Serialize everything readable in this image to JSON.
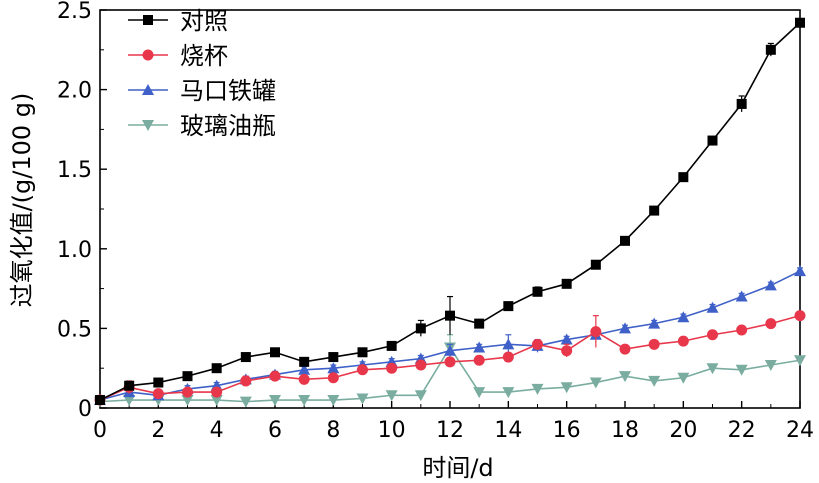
{
  "chart_data": {
    "type": "line",
    "xlabel": "时间/d",
    "ylabel": "过氧化值/(g/100 g)",
    "xlim": [
      0,
      24
    ],
    "ylim": [
      0,
      2.5
    ],
    "x_ticks": [
      0,
      2,
      4,
      6,
      8,
      10,
      12,
      14,
      16,
      18,
      20,
      22,
      24
    ],
    "y_ticks": [
      0,
      0.5,
      1.0,
      1.5,
      2.0,
      2.5
    ],
    "x_tick_labels": [
      "0",
      "2",
      "4",
      "6",
      "8",
      "10",
      "12",
      "14",
      "16",
      "18",
      "20",
      "22",
      "24"
    ],
    "y_tick_labels": [
      "0",
      "0.5",
      "1.0",
      "1.5",
      "2.0",
      "2.5"
    ],
    "grid": false,
    "legend_position": "top-left",
    "x": [
      0,
      1,
      2,
      3,
      4,
      5,
      6,
      7,
      8,
      9,
      10,
      11,
      12,
      13,
      14,
      15,
      16,
      17,
      18,
      19,
      20,
      21,
      22,
      23,
      24
    ],
    "series": [
      {
        "name": "对照",
        "color": "#000000",
        "marker": "square",
        "values": [
          0.05,
          0.14,
          0.16,
          0.2,
          0.25,
          0.32,
          0.35,
          0.29,
          0.32,
          0.35,
          0.39,
          0.5,
          0.58,
          0.53,
          0.64,
          0.73,
          0.78,
          0.9,
          1.05,
          1.24,
          1.45,
          1.68,
          1.91,
          2.25,
          2.42
        ],
        "errors": [
          0,
          0.02,
          0.01,
          0.01,
          0.01,
          0.02,
          0.02,
          0.01,
          0.02,
          0.02,
          0.02,
          0.05,
          0.12,
          0.02,
          0.02,
          0.03,
          0.02,
          0.02,
          0.02,
          0.02,
          0.02,
          0.02,
          0.05,
          0.04,
          0.02
        ]
      },
      {
        "name": "烧杯",
        "color": "#e8364a",
        "marker": "circle",
        "values": [
          0.05,
          0.13,
          0.09,
          0.1,
          0.1,
          0.17,
          0.2,
          0.18,
          0.19,
          0.24,
          0.25,
          0.27,
          0.29,
          0.3,
          0.32,
          0.4,
          0.36,
          0.48,
          0.37,
          0.4,
          0.42,
          0.46,
          0.49,
          0.53,
          0.58
        ],
        "errors": [
          0,
          0.04,
          0.02,
          0.02,
          0.02,
          0.02,
          0.02,
          0.02,
          0.02,
          0.02,
          0.02,
          0.02,
          0.02,
          0.02,
          0.02,
          0.02,
          0.04,
          0.1,
          0.02,
          0.02,
          0.02,
          0.02,
          0.02,
          0.02,
          0.02
        ]
      },
      {
        "name": "马口铁罐",
        "color": "#3f60c8",
        "marker": "triangle-up",
        "values": [
          0.05,
          0.1,
          0.08,
          0.12,
          0.14,
          0.18,
          0.21,
          0.24,
          0.25,
          0.27,
          0.29,
          0.31,
          0.36,
          0.38,
          0.4,
          0.39,
          0.43,
          0.46,
          0.5,
          0.53,
          0.57,
          0.63,
          0.7,
          0.77,
          0.86
        ],
        "errors": [
          0,
          0.02,
          0.02,
          0.02,
          0.02,
          0.02,
          0.02,
          0.02,
          0.02,
          0.02,
          0.02,
          0.02,
          0.04,
          0.02,
          0.06,
          0.04,
          0.02,
          0.02,
          0.02,
          0.02,
          0.02,
          0.02,
          0.02,
          0.02,
          0.02
        ]
      },
      {
        "name": "玻璃油瓶",
        "color": "#7aad9f",
        "marker": "triangle-down",
        "values": [
          0.04,
          0.05,
          0.05,
          0.05,
          0.05,
          0.04,
          0.05,
          0.05,
          0.05,
          0.06,
          0.08,
          0.08,
          0.38,
          0.1,
          0.1,
          0.12,
          0.13,
          0.16,
          0.2,
          0.17,
          0.19,
          0.25,
          0.24,
          0.27,
          0.3
        ],
        "errors": [
          0,
          0.01,
          0.01,
          0.01,
          0.01,
          0.01,
          0.01,
          0.01,
          0.01,
          0.01,
          0.02,
          0.02,
          0.08,
          0.02,
          0.02,
          0.02,
          0.02,
          0.02,
          0.02,
          0.02,
          0.02,
          0.02,
          0.02,
          0.02,
          0.02
        ]
      }
    ]
  }
}
